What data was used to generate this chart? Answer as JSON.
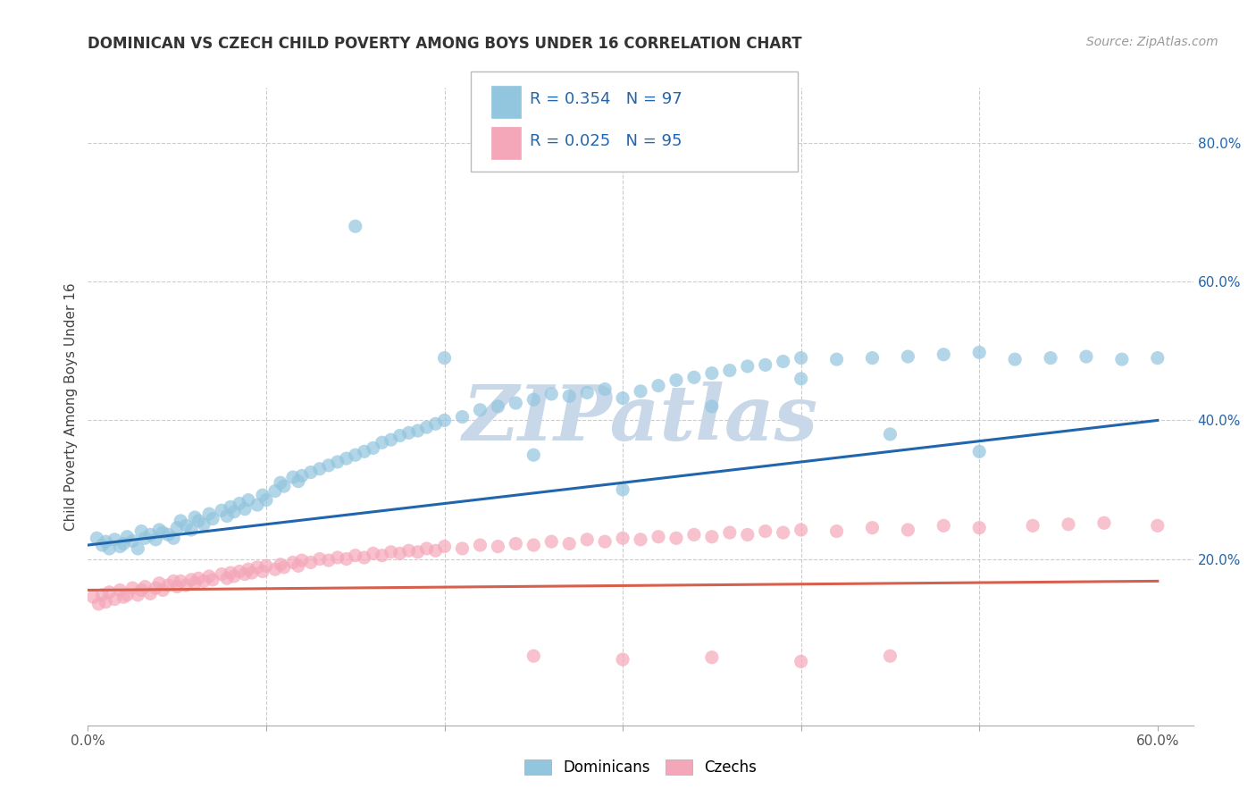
{
  "title": "DOMINICAN VS CZECH CHILD POVERTY AMONG BOYS UNDER 16 CORRELATION CHART",
  "source": "Source: ZipAtlas.com",
  "ylabel": "Child Poverty Among Boys Under 16",
  "watermark": "ZIPatlas",
  "xlim": [
    0.0,
    0.62
  ],
  "ylim": [
    -0.04,
    0.88
  ],
  "xtick_vals": [
    0.0,
    0.1,
    0.2,
    0.3,
    0.4,
    0.5,
    0.6
  ],
  "xtick_labels": [
    "0.0%",
    "",
    "",
    "",
    "",
    "",
    "60.0%"
  ],
  "ytick_vals_right": [
    0.8,
    0.6,
    0.4,
    0.2
  ],
  "ytick_labels_right": [
    "80.0%",
    "60.0%",
    "40.0%",
    "20.0%"
  ],
  "dominican_color": "#92c5de",
  "czech_color": "#f4a7b9",
  "dominican_line_color": "#2166ac",
  "czech_line_color": "#d6604d",
  "legend_R_dominican": "0.354",
  "legend_N_dominican": "97",
  "legend_R_czech": "0.025",
  "legend_N_czech": "95",
  "dominican_scatter_x": [
    0.005,
    0.008,
    0.01,
    0.012,
    0.015,
    0.018,
    0.02,
    0.022,
    0.025,
    0.028,
    0.03,
    0.032,
    0.035,
    0.038,
    0.04,
    0.042,
    0.045,
    0.048,
    0.05,
    0.052,
    0.055,
    0.058,
    0.06,
    0.062,
    0.065,
    0.068,
    0.07,
    0.075,
    0.078,
    0.08,
    0.082,
    0.085,
    0.088,
    0.09,
    0.095,
    0.098,
    0.1,
    0.105,
    0.108,
    0.11,
    0.115,
    0.118,
    0.12,
    0.125,
    0.13,
    0.135,
    0.14,
    0.145,
    0.15,
    0.155,
    0.16,
    0.165,
    0.17,
    0.175,
    0.18,
    0.185,
    0.19,
    0.195,
    0.2,
    0.21,
    0.22,
    0.23,
    0.24,
    0.25,
    0.26,
    0.27,
    0.28,
    0.29,
    0.3,
    0.31,
    0.32,
    0.33,
    0.34,
    0.35,
    0.36,
    0.37,
    0.38,
    0.39,
    0.4,
    0.42,
    0.44,
    0.46,
    0.48,
    0.5,
    0.52,
    0.54,
    0.56,
    0.58,
    0.6,
    0.15,
    0.2,
    0.25,
    0.3,
    0.35,
    0.4,
    0.45,
    0.5
  ],
  "dominican_scatter_y": [
    0.23,
    0.22,
    0.225,
    0.215,
    0.228,
    0.218,
    0.222,
    0.232,
    0.226,
    0.215,
    0.24,
    0.23,
    0.235,
    0.228,
    0.242,
    0.238,
    0.235,
    0.23,
    0.245,
    0.255,
    0.248,
    0.242,
    0.26,
    0.255,
    0.25,
    0.265,
    0.258,
    0.27,
    0.262,
    0.275,
    0.268,
    0.28,
    0.272,
    0.285,
    0.278,
    0.292,
    0.285,
    0.298,
    0.31,
    0.305,
    0.318,
    0.312,
    0.32,
    0.325,
    0.33,
    0.335,
    0.34,
    0.345,
    0.35,
    0.355,
    0.36,
    0.368,
    0.372,
    0.378,
    0.382,
    0.385,
    0.39,
    0.395,
    0.4,
    0.405,
    0.415,
    0.42,
    0.425,
    0.43,
    0.438,
    0.435,
    0.44,
    0.445,
    0.432,
    0.442,
    0.45,
    0.458,
    0.462,
    0.468,
    0.472,
    0.478,
    0.48,
    0.485,
    0.49,
    0.488,
    0.49,
    0.492,
    0.495,
    0.498,
    0.488,
    0.49,
    0.492,
    0.488,
    0.49,
    0.68,
    0.49,
    0.35,
    0.3,
    0.42,
    0.46,
    0.38,
    0.355
  ],
  "czech_scatter_x": [
    0.003,
    0.006,
    0.008,
    0.01,
    0.012,
    0.015,
    0.018,
    0.02,
    0.022,
    0.025,
    0.028,
    0.03,
    0.032,
    0.035,
    0.038,
    0.04,
    0.042,
    0.045,
    0.048,
    0.05,
    0.052,
    0.055,
    0.058,
    0.06,
    0.062,
    0.065,
    0.068,
    0.07,
    0.075,
    0.078,
    0.08,
    0.082,
    0.085,
    0.088,
    0.09,
    0.092,
    0.095,
    0.098,
    0.1,
    0.105,
    0.108,
    0.11,
    0.115,
    0.118,
    0.12,
    0.125,
    0.13,
    0.135,
    0.14,
    0.145,
    0.15,
    0.155,
    0.16,
    0.165,
    0.17,
    0.175,
    0.18,
    0.185,
    0.19,
    0.195,
    0.2,
    0.21,
    0.22,
    0.23,
    0.24,
    0.25,
    0.26,
    0.27,
    0.28,
    0.29,
    0.3,
    0.31,
    0.32,
    0.33,
    0.34,
    0.35,
    0.36,
    0.37,
    0.38,
    0.39,
    0.4,
    0.42,
    0.44,
    0.46,
    0.48,
    0.5,
    0.53,
    0.55,
    0.57,
    0.6,
    0.25,
    0.3,
    0.35,
    0.4,
    0.45
  ],
  "czech_scatter_y": [
    0.145,
    0.135,
    0.148,
    0.138,
    0.152,
    0.142,
    0.155,
    0.145,
    0.148,
    0.158,
    0.148,
    0.155,
    0.16,
    0.15,
    0.158,
    0.165,
    0.155,
    0.162,
    0.168,
    0.16,
    0.168,
    0.162,
    0.17,
    0.165,
    0.172,
    0.168,
    0.175,
    0.17,
    0.178,
    0.172,
    0.18,
    0.175,
    0.182,
    0.178,
    0.185,
    0.18,
    0.188,
    0.182,
    0.19,
    0.185,
    0.192,
    0.188,
    0.195,
    0.19,
    0.198,
    0.195,
    0.2,
    0.198,
    0.202,
    0.2,
    0.205,
    0.202,
    0.208,
    0.205,
    0.21,
    0.208,
    0.212,
    0.21,
    0.215,
    0.212,
    0.218,
    0.215,
    0.22,
    0.218,
    0.222,
    0.22,
    0.225,
    0.222,
    0.228,
    0.225,
    0.23,
    0.228,
    0.232,
    0.23,
    0.235,
    0.232,
    0.238,
    0.235,
    0.24,
    0.238,
    0.242,
    0.24,
    0.245,
    0.242,
    0.248,
    0.245,
    0.248,
    0.25,
    0.252,
    0.248,
    0.06,
    0.055,
    0.058,
    0.052,
    0.06
  ],
  "dominican_trend_x": [
    0.0,
    0.6
  ],
  "dominican_trend_y": [
    0.22,
    0.4
  ],
  "czech_trend_x": [
    0.0,
    0.6
  ],
  "czech_trend_y": [
    0.155,
    0.168
  ],
  "background_color": "#ffffff",
  "grid_color": "#cccccc",
  "title_color": "#333333",
  "source_color": "#999999",
  "axis_color": "#555555",
  "legend_text_color": "#2166ac",
  "watermark_color": "#c8d8e8"
}
